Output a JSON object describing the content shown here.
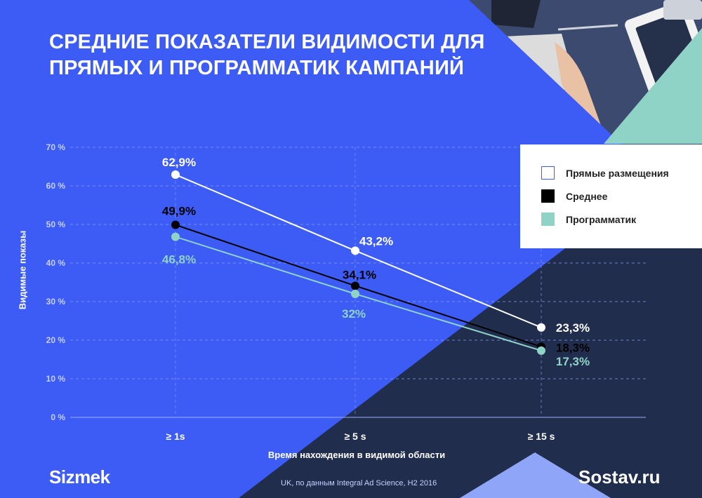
{
  "title": "СРЕДНИЕ ПОКАЗАТЕЛИ ВИДИМОСТИ ДЛЯ ПРЯМЫХ И ПРОГРАММАТИК КАМПАНИЙ",
  "source": "UK, по данным Integral Ad Science, H2 2016",
  "logos": {
    "left": "Sizmek",
    "right": "Sostav.ru"
  },
  "colors": {
    "background": "#3d5cf5",
    "dark": "#212d4d",
    "teal": "#8fd3c7",
    "white": "#ffffff",
    "black": "#000000"
  },
  "chart_data": {
    "type": "line",
    "title": "",
    "xlabel": "Время нахождения в видимой области",
    "ylabel": "Видимые показы",
    "categories": [
      "≥ 1s",
      "≥ 5 s",
      "≥ 15 s"
    ],
    "ylim": [
      0,
      70
    ],
    "yticks": [
      0,
      10,
      20,
      30,
      40,
      50,
      60,
      70
    ],
    "ytick_labels": [
      "0 %",
      "10 %",
      "20 %",
      "30 %",
      "40 %",
      "50 %",
      "60 %",
      "70 %"
    ],
    "grid": true,
    "legend_position": "top-right",
    "series": [
      {
        "name": "Прямые размещения",
        "values": [
          62.9,
          43.2,
          23.3
        ],
        "labels": [
          "62,9%",
          "43,2%",
          "23,3%"
        ],
        "color": "#ffffff",
        "label_color": "#ffffff"
      },
      {
        "name": "Среднее",
        "values": [
          49.9,
          34.1,
          18.3
        ],
        "labels": [
          "49,9%",
          "34,1%",
          "18,3%"
        ],
        "color": "#000000",
        "label_color": "#000000"
      },
      {
        "name": "Программатик",
        "values": [
          46.8,
          32,
          17.3
        ],
        "labels": [
          "46,8%",
          "32%",
          "17,3%"
        ],
        "color": "#8fd3c7",
        "label_color": "#8fd3c7"
      }
    ]
  }
}
